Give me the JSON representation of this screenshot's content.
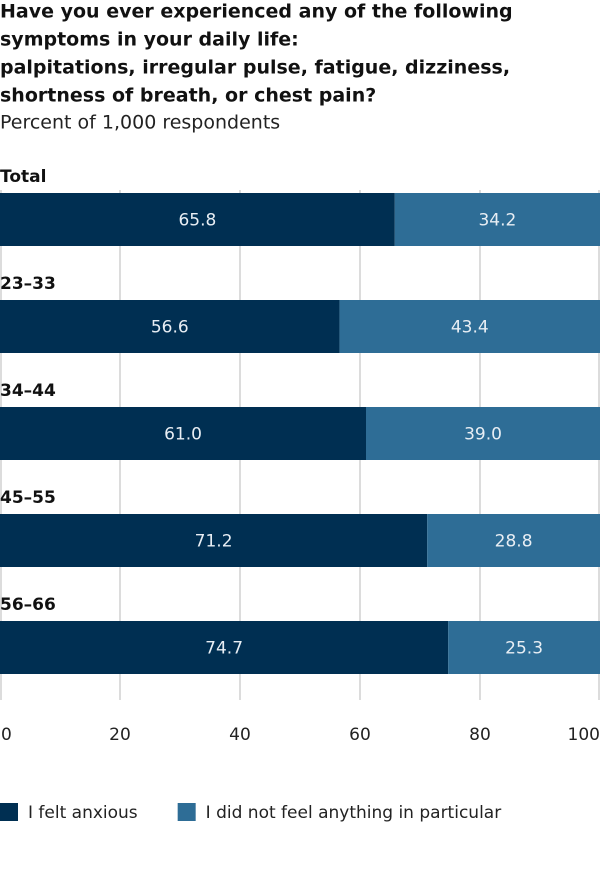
{
  "chart_data": {
    "type": "stacked-bar",
    "title": [
      "Have you ever experienced any of the following",
      "symptoms in your daily life:",
      "palpitations, irregular pulse, fatigue, dizziness,",
      "shortness of breath, or chest pain?"
    ],
    "subtitle": "Percent of 1,000 respondents",
    "categories": [
      "Total",
      "23–33",
      "34–44",
      "45–55",
      "56–66"
    ],
    "series": [
      {
        "name": "I felt anxious",
        "color": "#002f52",
        "values": [
          65.8,
          56.6,
          61.0,
          71.2,
          74.7
        ],
        "value_labels": [
          "65.8",
          "56.6",
          "61.0",
          "71.2",
          "74.7"
        ]
      },
      {
        "name": "I did not feel anything in particular",
        "color": "#2e6d96",
        "values": [
          34.2,
          43.4,
          39.0,
          28.8,
          25.3
        ],
        "value_labels": [
          "34.2",
          "43.4",
          "39.0",
          "28.8",
          "25.3"
        ]
      }
    ],
    "xlim": [
      0,
      100
    ],
    "xticks": [
      0,
      20,
      40,
      60,
      80,
      100
    ],
    "grid": true
  }
}
